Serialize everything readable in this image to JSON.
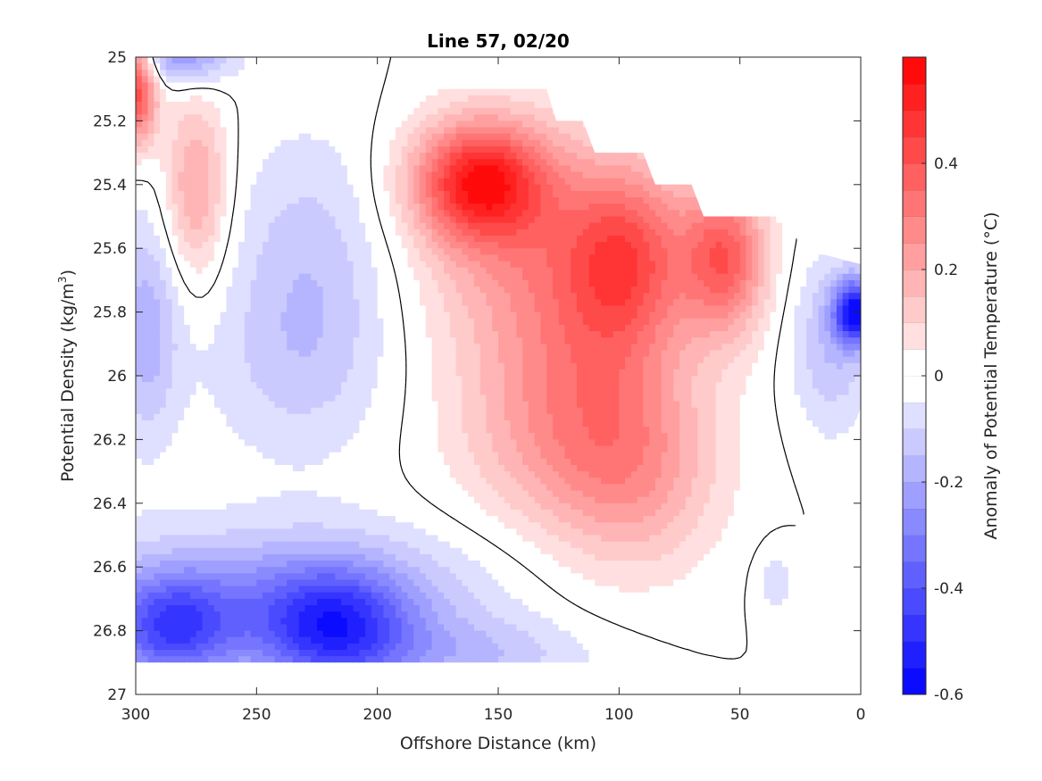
{
  "chart_data": {
    "type": "contourf",
    "title": "Line 57, 02/20",
    "xlabel": "Offshore Distance (km)",
    "ylabel_main": "Potential Density (kg/m",
    "ylabel_sup": "3",
    "ylabel_close": ")",
    "colorbar_label": "Anomaly of Potential Temperature (°C)",
    "xlim": [
      300,
      0
    ],
    "ylim": [
      25,
      27
    ],
    "x_reversed": true,
    "y_reversed": true,
    "xticks": [
      300,
      250,
      200,
      150,
      100,
      50,
      0
    ],
    "xtick_labels": [
      "300",
      "250",
      "200",
      "150",
      "100",
      "50",
      "0"
    ],
    "yticks": [
      25,
      25.2,
      25.4,
      25.6,
      25.8,
      26,
      26.2,
      26.4,
      26.6,
      26.8,
      27
    ],
    "ytick_labels": [
      "25",
      "25.2",
      "25.4",
      "25.6",
      "25.8",
      "26",
      "26.2",
      "26.4",
      "26.6",
      "26.8",
      "27"
    ],
    "colorbar_range": [
      -0.6,
      0.6
    ],
    "colorbar_levels": 24,
    "colorbar_ticks": [
      -0.6,
      -0.4,
      -0.2,
      0,
      0.2,
      0.4
    ],
    "colorbar_tick_labels": [
      "-0.6",
      "-0.4",
      "-0.2",
      "0",
      "0.2",
      "0.4"
    ],
    "colormap": {
      "negative": "#0000ff",
      "zero": "#ffffff",
      "positive": "#ff0000"
    },
    "zero_contour_color": "#000000",
    "anomalies": [
      {
        "x": 158,
        "y": 25.39,
        "value": 0.47,
        "sx": 19,
        "sy": 0.13
      },
      {
        "x": 142,
        "y": 25.6,
        "value": 0.18,
        "sx": 30,
        "sy": 0.28
      },
      {
        "x": 96,
        "y": 25.62,
        "value": 0.3,
        "sx": 18,
        "sy": 0.2
      },
      {
        "x": 110,
        "y": 25.95,
        "value": 0.2,
        "sx": 28,
        "sy": 0.35
      },
      {
        "x": 56,
        "y": 25.63,
        "value": 0.36,
        "sx": 12,
        "sy": 0.17
      },
      {
        "x": 92,
        "y": 26.3,
        "value": 0.17,
        "sx": 24,
        "sy": 0.22
      },
      {
        "x": 135,
        "y": 26.2,
        "value": 0.1,
        "sx": 28,
        "sy": 0.2
      },
      {
        "x": 275,
        "y": 25.41,
        "value": 0.22,
        "sx": 9,
        "sy": 0.2
      },
      {
        "x": 300,
        "y": 25.1,
        "value": 0.45,
        "sx": 6,
        "sy": 0.12
      },
      {
        "x": 228,
        "y": 25.7,
        "value": -0.14,
        "sx": 24,
        "sy": 0.32
      },
      {
        "x": 240,
        "y": 26.0,
        "value": -0.05,
        "sx": 30,
        "sy": 0.2
      },
      {
        "x": 296,
        "y": 25.85,
        "value": -0.18,
        "sx": 10,
        "sy": 0.25
      },
      {
        "x": 280,
        "y": 25.0,
        "value": -0.25,
        "sx": 14,
        "sy": 0.06
      },
      {
        "x": 218,
        "y": 26.8,
        "value": -0.38,
        "sx": 22,
        "sy": 0.13
      },
      {
        "x": 285,
        "y": 26.8,
        "value": -0.35,
        "sx": 18,
        "sy": 0.12
      },
      {
        "x": 240,
        "y": 26.7,
        "value": -0.22,
        "sx": 60,
        "sy": 0.16
      },
      {
        "x": 160,
        "y": 26.88,
        "value": -0.12,
        "sx": 35,
        "sy": 0.08
      },
      {
        "x": 2,
        "y": 25.8,
        "value": -0.55,
        "sx": 6,
        "sy": 0.07
      },
      {
        "x": 12,
        "y": 25.9,
        "value": -0.15,
        "sx": 12,
        "sy": 0.2
      },
      {
        "x": 35,
        "y": 26.65,
        "value": -0.08,
        "sx": 6,
        "sy": 0.08
      }
    ],
    "data_mask_polygon": [
      [
        300,
        25.0
      ],
      [
        180,
        25.0
      ],
      [
        178,
        25.1
      ],
      [
        130,
        25.1
      ],
      [
        126,
        25.2
      ],
      [
        115,
        25.2
      ],
      [
        110,
        25.3
      ],
      [
        90,
        25.3
      ],
      [
        85,
        25.4
      ],
      [
        70,
        25.4
      ],
      [
        65,
        25.5
      ],
      [
        30,
        25.5
      ],
      [
        25,
        25.6
      ],
      [
        15,
        25.62
      ],
      [
        0,
        25.65
      ],
      [
        0,
        26.1
      ],
      [
        10,
        26.3
      ],
      [
        30,
        26.5
      ],
      [
        30,
        26.9
      ],
      [
        115,
        26.9
      ],
      [
        115,
        26.9
      ],
      [
        300,
        26.9
      ]
    ]
  }
}
